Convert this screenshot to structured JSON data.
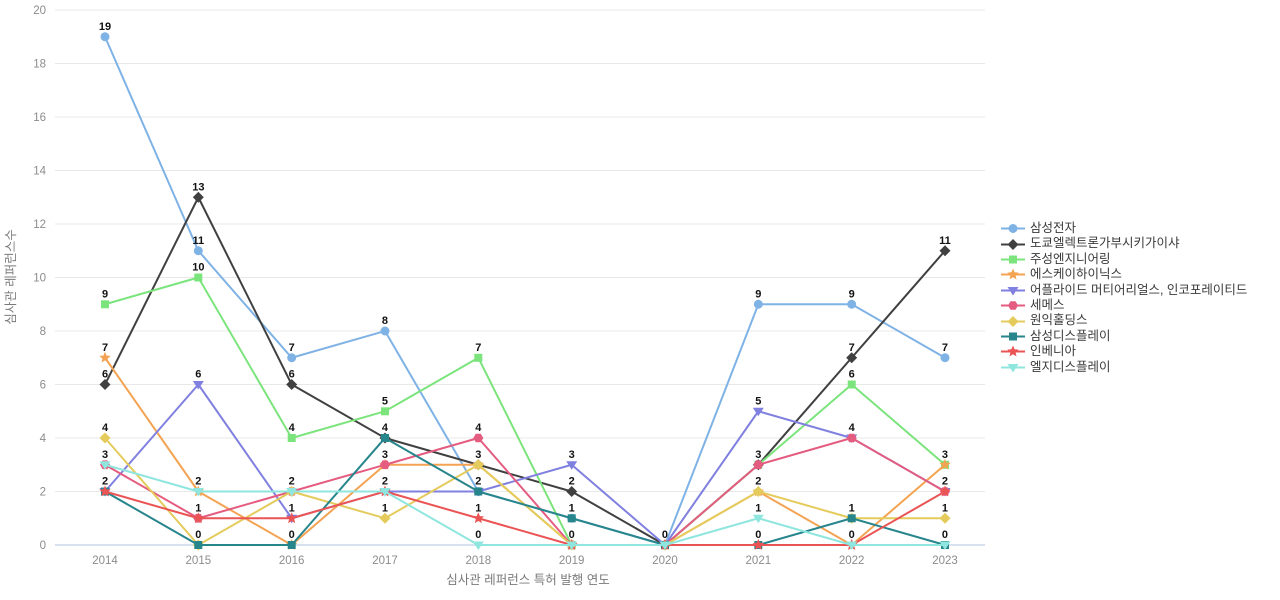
{
  "chart_data": {
    "type": "line",
    "x": [
      2014,
      2015,
      2016,
      2017,
      2018,
      2019,
      2020,
      2021,
      2022,
      2023
    ],
    "xlabel": "심사관 레퍼런스 특허 발행 연도",
    "ylabel": "심사관 레퍼런스수",
    "ylim": [
      0,
      20
    ],
    "yticks": [
      0,
      2,
      4,
      6,
      8,
      10,
      12,
      14,
      16,
      18,
      20
    ],
    "grid": true,
    "legend_position": "right",
    "colors": {
      "gridline": "#e8e8e8",
      "zeroline": "#aec6df",
      "tick_text": "#8c8c8c",
      "axis_title_text": "#7a7a7a",
      "point_label_text": "#111111",
      "legend_text": "#3a3a3a"
    },
    "series": [
      {
        "name": "삼성전자",
        "color": "#7FB2E5",
        "marker": "circle",
        "values": [
          19,
          11,
          7,
          8,
          2,
          1,
          0,
          9,
          9,
          7
        ]
      },
      {
        "name": "도쿄엘렉트론가부시키가이샤",
        "color": "#404040",
        "marker": "diamond",
        "values": [
          6,
          13,
          6,
          4,
          3,
          2,
          0,
          3,
          7,
          11
        ]
      },
      {
        "name": "주성엔지니어링",
        "color": "#7CE47C",
        "marker": "square",
        "values": [
          9,
          10,
          4,
          5,
          7,
          0,
          0,
          3,
          6,
          3
        ]
      },
      {
        "name": "에스케이하이닉스",
        "color": "#F4A353",
        "marker": "star",
        "values": [
          7,
          2,
          0,
          3,
          3,
          0,
          0,
          2,
          0,
          3
        ]
      },
      {
        "name": "어플라이드 머티어리얼스, 인코포레이티드",
        "color": "#8080E0",
        "marker": "triangle-down",
        "values": [
          2,
          6,
          1,
          2,
          2,
          3,
          0,
          5,
          4,
          2
        ]
      },
      {
        "name": "세메스",
        "color": "#E45C7F",
        "marker": "hexagon",
        "values": [
          3,
          1,
          2,
          3,
          4,
          0,
          0,
          3,
          4,
          2
        ]
      },
      {
        "name": "원익홀딩스",
        "color": "#E4CB5C",
        "marker": "diamond",
        "values": [
          4,
          0,
          2,
          1,
          3,
          0,
          0,
          2,
          1,
          1
        ]
      },
      {
        "name": "삼성디스플레이",
        "color": "#27858C",
        "marker": "square",
        "values": [
          2,
          0,
          0,
          4,
          2,
          1,
          0,
          0,
          1,
          0
        ]
      },
      {
        "name": "인베니아",
        "color": "#EA5455",
        "marker": "star",
        "values": [
          2,
          1,
          1,
          2,
          1,
          0,
          0,
          0,
          0,
          2
        ]
      },
      {
        "name": "엘지디스플레이",
        "color": "#8FE6DE",
        "marker": "triangle-down",
        "values": [
          3,
          2,
          2,
          2,
          0,
          0,
          0,
          1,
          0,
          0
        ]
      }
    ]
  }
}
